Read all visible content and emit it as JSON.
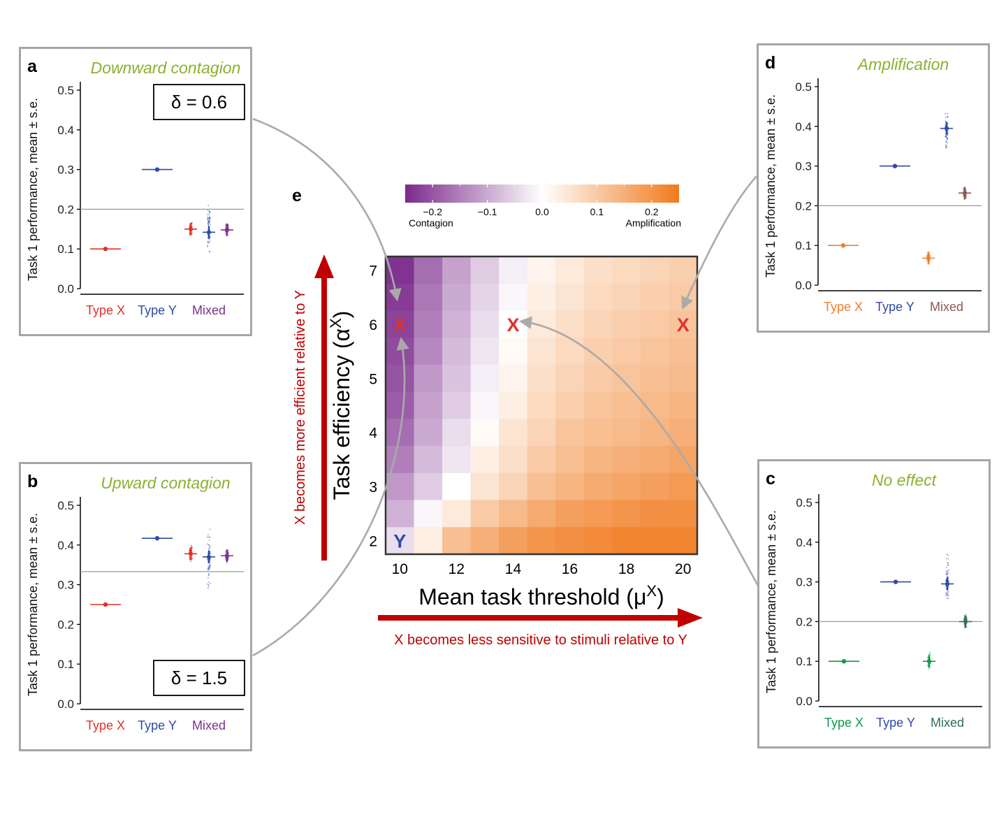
{
  "chart_data": [
    {
      "id": "a",
      "type": "scatter",
      "panel_label": "a",
      "title": "Downward contagion",
      "ylabel": "Task 1 performance, mean ± s.e.",
      "ylim": [
        0,
        0.5
      ],
      "yticks": [
        "0.0",
        "0.1",
        "0.2",
        "0.3",
        "0.4",
        "0.5"
      ],
      "reference_line": 0.2,
      "annotation": "δ = 0.6",
      "annotation_position": "top-right",
      "categories": [
        "Type X",
        "Type Y",
        "Mixed"
      ],
      "category_colors": [
        "#e0312c",
        "#2e4aa6",
        "#7d2f91"
      ],
      "points": [
        {
          "category": "Type X",
          "value": 0.1,
          "color": "#e0312c"
        },
        {
          "category": "Type Y",
          "value": 0.3,
          "color": "#2e4aa6"
        },
        {
          "category": "Mixed",
          "value": 0.15,
          "color": "#e0312c",
          "spread": [
            0.13,
            0.17
          ]
        },
        {
          "category": "Mixed",
          "value": 0.142,
          "color": "#2e4aa6",
          "spread": [
            0.085,
            0.22
          ]
        },
        {
          "category": "Mixed",
          "value": 0.148,
          "color": "#7d2f91",
          "spread": [
            0.13,
            0.17
          ]
        }
      ]
    },
    {
      "id": "b",
      "type": "scatter",
      "panel_label": "b",
      "title": "Upward contagion",
      "ylabel": "Task 1 performance, mean ± s.e.",
      "ylim": [
        0,
        0.5
      ],
      "yticks": [
        "0.0",
        "0.1",
        "0.2",
        "0.3",
        "0.4",
        "0.5"
      ],
      "reference_line": 0.333,
      "annotation": "δ = 1.5",
      "annotation_position": "bottom-right",
      "categories": [
        "Type X",
        "Type Y",
        "Mixed"
      ],
      "category_colors": [
        "#e0312c",
        "#2e4aa6",
        "#7d2f91"
      ],
      "points": [
        {
          "category": "Type X",
          "value": 0.25,
          "color": "#e0312c"
        },
        {
          "category": "Type Y",
          "value": 0.417,
          "color": "#2e4aa6"
        },
        {
          "category": "Mixed",
          "value": 0.378,
          "color": "#e0312c",
          "spread": [
            0.355,
            0.405
          ]
        },
        {
          "category": "Mixed",
          "value": 0.37,
          "color": "#2e4aa6",
          "spread": [
            0.26,
            0.46
          ]
        },
        {
          "category": "Mixed",
          "value": 0.373,
          "color": "#7d2f91",
          "spread": [
            0.35,
            0.395
          ]
        }
      ]
    },
    {
      "id": "c",
      "type": "scatter",
      "panel_label": "c",
      "title": "No effect",
      "ylabel": "Task 1 performance, mean ± s.e.",
      "ylim": [
        0,
        0.5
      ],
      "yticks": [
        "0.0",
        "0.1",
        "0.2",
        "0.3",
        "0.4",
        "0.5"
      ],
      "reference_line": 0.2,
      "categories": [
        "Type X",
        "Type Y",
        "Mixed"
      ],
      "category_colors": [
        "#0f9b4a",
        "#2e4aa6",
        "#2f6e5e"
      ],
      "points": [
        {
          "category": "Type X",
          "value": 0.1,
          "color": "#0f9b4a"
        },
        {
          "category": "Type Y",
          "value": 0.3,
          "color": "#2e4aa6"
        },
        {
          "category": "Mixed",
          "value": 0.1,
          "color": "#0f9b4a",
          "spread": [
            0.075,
            0.125
          ]
        },
        {
          "category": "Mixed",
          "value": 0.295,
          "color": "#2e4aa6",
          "spread": [
            0.23,
            0.385
          ]
        },
        {
          "category": "Mixed",
          "value": 0.2,
          "color": "#2f6e5e",
          "spread": [
            0.18,
            0.225
          ]
        }
      ]
    },
    {
      "id": "d",
      "type": "scatter",
      "panel_label": "d",
      "title": "Amplification",
      "ylabel": "Task 1 performance, mean ± s.e.",
      "ylim": [
        0,
        0.5
      ],
      "yticks": [
        "0.0",
        "0.1",
        "0.2",
        "0.3",
        "0.4",
        "0.5"
      ],
      "reference_line": 0.2,
      "categories": [
        "Type X",
        "Type Y",
        "Mixed"
      ],
      "category_colors": [
        "#f07f2c",
        "#2e4aa6",
        "#8b5a50"
      ],
      "points": [
        {
          "category": "Type X",
          "value": 0.1,
          "color": "#f07f2c"
        },
        {
          "category": "Type Y",
          "value": 0.3,
          "color": "#2e4aa6"
        },
        {
          "category": "Mixed",
          "value": 0.068,
          "color": "#f07f2c",
          "spread": [
            0.05,
            0.09
          ]
        },
        {
          "category": "Mixed",
          "value": 0.395,
          "color": "#2e4aa6",
          "spread": [
            0.33,
            0.455
          ]
        },
        {
          "category": "Mixed",
          "value": 0.232,
          "color": "#8b5a50",
          "spread": [
            0.21,
            0.25
          ]
        }
      ]
    },
    {
      "id": "e",
      "type": "heatmap",
      "panel_label": "e",
      "xlabel": "Mean task threshold (μ",
      "xlabel_sup": "X",
      "xlabel_end": ")",
      "ylabel": "Task efficiency (α",
      "ylabel_sup": "X",
      "ylabel_end": ")",
      "x_range": [
        10,
        20
      ],
      "y_range": [
        2,
        7
      ],
      "xticks": [
        "10",
        "12",
        "14",
        "16",
        "18",
        "20"
      ],
      "yticks": [
        "2",
        "3",
        "4",
        "5",
        "6",
        "7"
      ],
      "x_values": [
        10,
        11,
        12,
        13,
        14,
        15,
        16,
        17,
        18,
        19,
        20
      ],
      "y_values": [
        7.0,
        6.5,
        6.0,
        5.5,
        5.0,
        4.5,
        4.0,
        3.5,
        3.0,
        2.5,
        2.0
      ],
      "colorbar": {
        "min": -0.25,
        "max": 0.25,
        "ticks": [
          "−0.2",
          "−0.1",
          "0.0",
          "0.1",
          "0.2"
        ],
        "tick_values": [
          -0.2,
          -0.1,
          0.0,
          0.1,
          0.2
        ],
        "left_label": "Contagion",
        "right_label": "Amplification",
        "low_color": "#7b2a8c",
        "mid_color": "#ffffff",
        "high_color": "#f07a1e"
      },
      "z": [
        [
          -0.24,
          -0.17,
          -0.11,
          -0.06,
          -0.02,
          0.02,
          0.04,
          0.06,
          0.07,
          0.08,
          0.09
        ],
        [
          -0.23,
          -0.16,
          -0.1,
          -0.05,
          -0.01,
          0.03,
          0.05,
          0.07,
          0.08,
          0.09,
          0.1
        ],
        [
          -0.22,
          -0.15,
          -0.09,
          -0.04,
          0.0,
          0.04,
          0.06,
          0.08,
          0.09,
          0.1,
          0.11
        ],
        [
          -0.21,
          -0.14,
          -0.08,
          -0.03,
          0.01,
          0.05,
          0.07,
          0.09,
          0.1,
          0.11,
          0.12
        ],
        [
          -0.2,
          -0.12,
          -0.07,
          -0.02,
          0.02,
          0.06,
          0.08,
          0.1,
          0.11,
          0.12,
          0.13
        ],
        [
          -0.19,
          -0.11,
          -0.06,
          -0.01,
          0.03,
          0.07,
          0.09,
          0.11,
          0.12,
          0.13,
          0.14
        ],
        [
          -0.17,
          -0.1,
          -0.04,
          0.01,
          0.05,
          0.08,
          0.11,
          0.12,
          0.13,
          0.14,
          0.15
        ],
        [
          -0.15,
          -0.08,
          -0.03,
          0.03,
          0.06,
          0.1,
          0.12,
          0.14,
          0.15,
          0.16,
          0.17
        ],
        [
          -0.12,
          -0.06,
          0.0,
          0.05,
          0.08,
          0.12,
          0.14,
          0.16,
          0.17,
          0.18,
          0.19
        ],
        [
          -0.09,
          -0.01,
          0.04,
          0.1,
          0.13,
          0.16,
          0.18,
          0.19,
          0.2,
          0.21,
          0.21
        ],
        [
          -0.04,
          0.03,
          0.12,
          0.15,
          0.18,
          0.2,
          0.21,
          0.22,
          0.23,
          0.23,
          0.23
        ]
      ],
      "markers": [
        {
          "text": "X",
          "x": 10,
          "y": 6,
          "color": "#e0312c"
        },
        {
          "text": "X",
          "x": 14,
          "y": 6,
          "color": "#e0312c"
        },
        {
          "text": "X",
          "x": 20,
          "y": 6,
          "color": "#e0312c"
        },
        {
          "text": "Y",
          "x": 10,
          "y": 2,
          "color": "#2e4aa6"
        }
      ],
      "arrow_x_label": "X becomes less sensitive to stimuli relative to Y",
      "arrow_y_label": "X becomes more efficient relative to Y",
      "arrow_color": "#c00000"
    }
  ]
}
